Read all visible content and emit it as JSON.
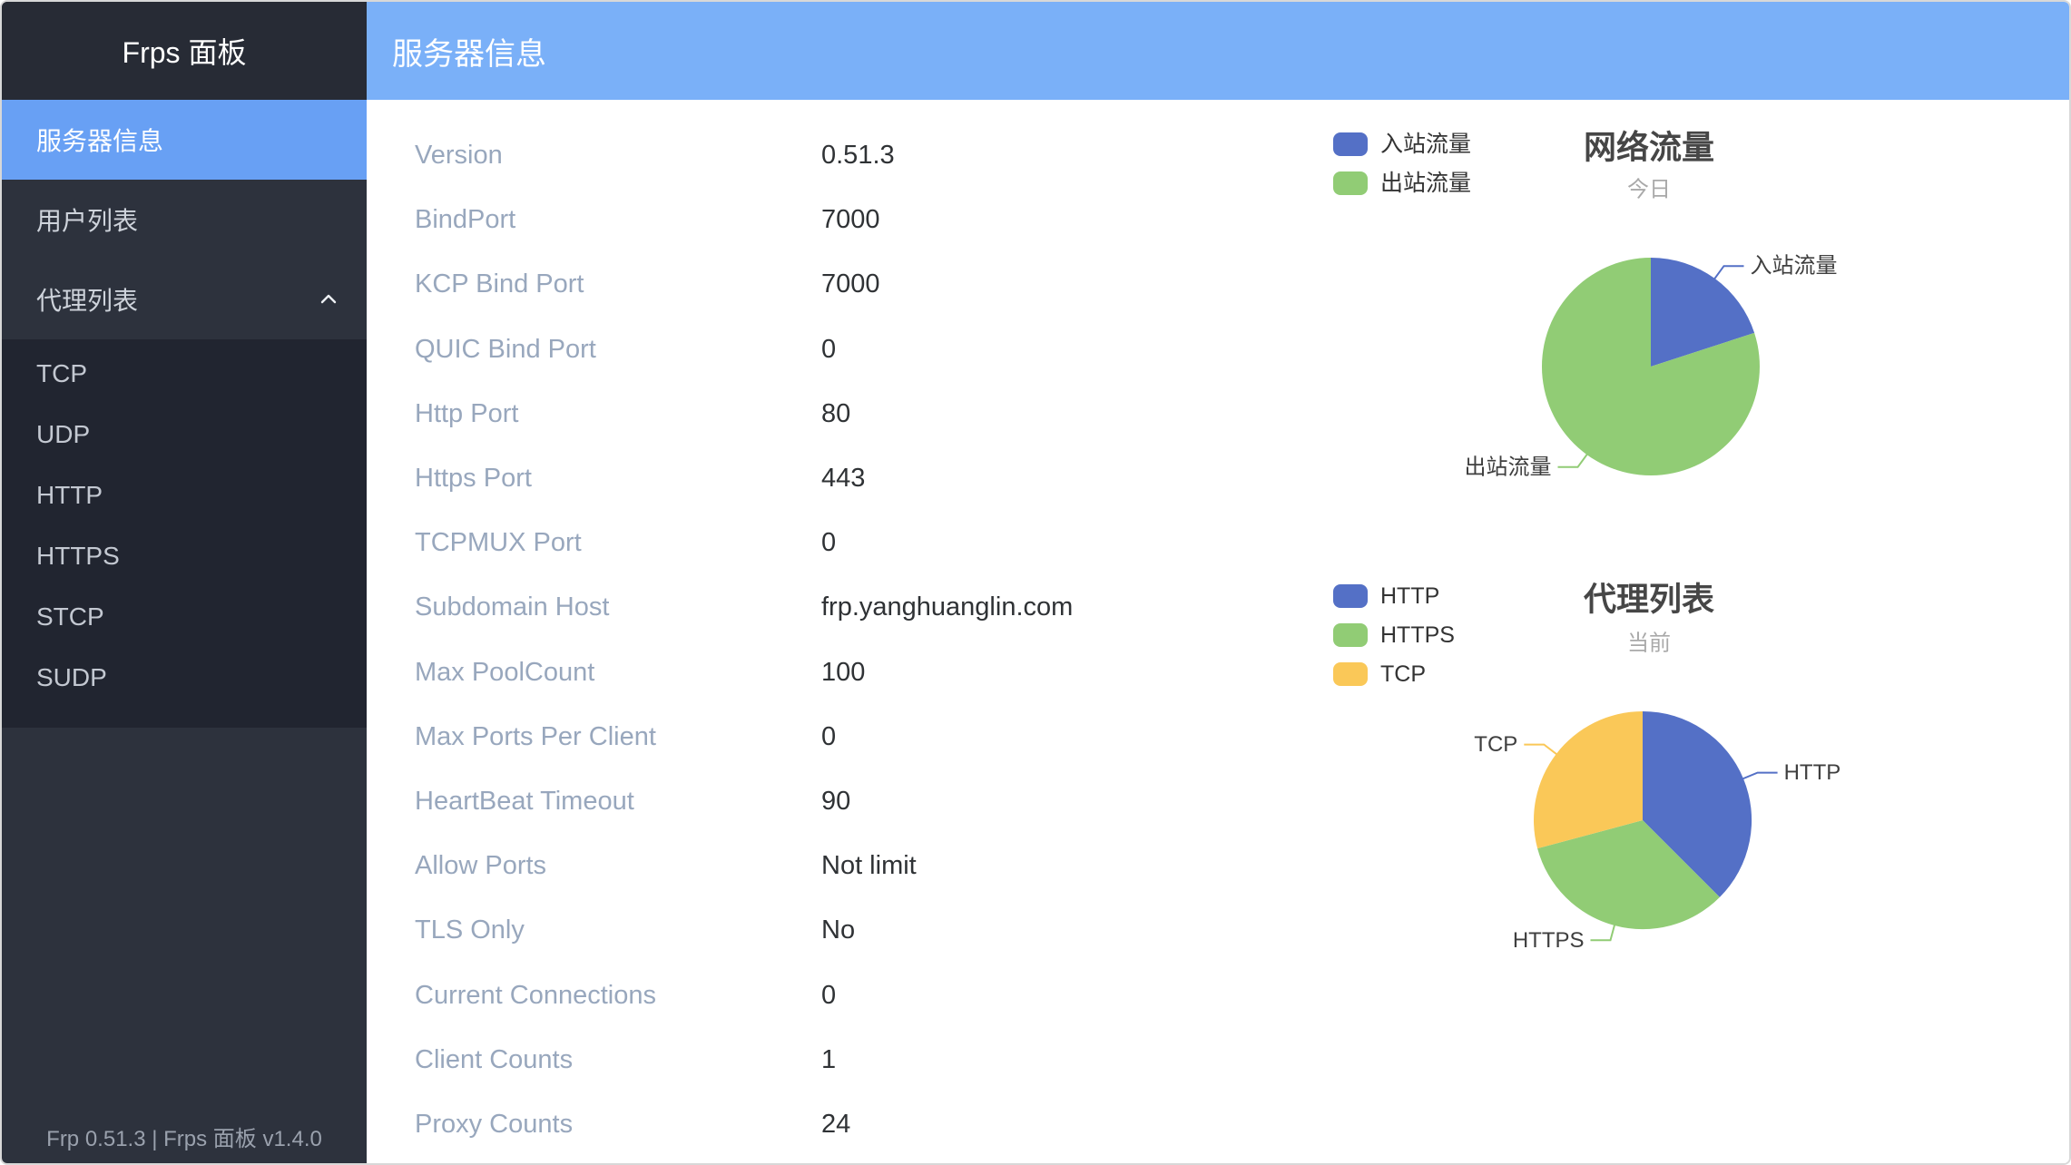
{
  "sidebar": {
    "title": "Frps 面板",
    "items": [
      {
        "id": "server-info",
        "label": "服务器信息",
        "active": true,
        "expandable": false
      },
      {
        "id": "user-list",
        "label": "用户列表",
        "active": false,
        "expandable": false
      },
      {
        "id": "proxy-list",
        "label": "代理列表",
        "active": false,
        "expandable": true,
        "expanded": true
      }
    ],
    "proxy_submenu": [
      {
        "id": "tcp",
        "label": "TCP"
      },
      {
        "id": "udp",
        "label": "UDP"
      },
      {
        "id": "http",
        "label": "HTTP"
      },
      {
        "id": "https",
        "label": "HTTPS"
      },
      {
        "id": "stcp",
        "label": "STCP"
      },
      {
        "id": "sudp",
        "label": "SUDP"
      }
    ],
    "footer": "Frp 0.51.3 | Frps 面板 v1.4.0"
  },
  "header": {
    "title": "服务器信息"
  },
  "server_info_rows": [
    {
      "label": "Version",
      "value": "0.51.3"
    },
    {
      "label": "BindPort",
      "value": "7000"
    },
    {
      "label": "KCP Bind Port",
      "value": "7000"
    },
    {
      "label": "QUIC Bind Port",
      "value": "0"
    },
    {
      "label": "Http Port",
      "value": "80"
    },
    {
      "label": "Https Port",
      "value": "443"
    },
    {
      "label": "TCPMUX Port",
      "value": "0"
    },
    {
      "label": "Subdomain Host",
      "value": "frp.yanghuanglin.com"
    },
    {
      "label": "Max PoolCount",
      "value": "100"
    },
    {
      "label": "Max Ports Per Client",
      "value": "0"
    },
    {
      "label": "HeartBeat Timeout",
      "value": "90"
    },
    {
      "label": "Allow Ports",
      "value": "Not limit"
    },
    {
      "label": "TLS Only",
      "value": "No"
    },
    {
      "label": "Current Connections",
      "value": "0"
    },
    {
      "label": "Client Counts",
      "value": "1"
    },
    {
      "label": "Proxy Counts",
      "value": "24"
    }
  ],
  "chart_data": [
    {
      "type": "pie",
      "title": "网络流量",
      "subtitle": "今日",
      "legend_position": "top-left",
      "values_unit": "estimated_percent_from_arc_angles",
      "series": [
        {
          "name": "入站流量",
          "value": 20,
          "color": "#5470c6"
        },
        {
          "name": "出站流量",
          "value": 80,
          "color": "#91cc75"
        }
      ]
    },
    {
      "type": "pie",
      "title": "代理列表",
      "subtitle": "当前",
      "legend_position": "top-left",
      "values_unit": "proxy_count",
      "series": [
        {
          "name": "HTTP",
          "value": 9,
          "color": "#5470c6"
        },
        {
          "name": "HTTPS",
          "value": 8,
          "color": "#91cc75"
        },
        {
          "name": "TCP",
          "value": 7,
          "color": "#fac858"
        }
      ]
    }
  ],
  "colors": {
    "header_bg": "#7ab0f8",
    "sidebar_bg": "#2d323d",
    "sidebar_title_bg": "#272b35",
    "submenu_bg": "#212530",
    "active_item_bg": "#68a0f4",
    "info_label_text": "#98a7bd",
    "info_value_text": "#2f3235",
    "chart_title_text": "#464646",
    "chart_subtitle_text": "#a9a9a9",
    "pie_blue": "#5470c6",
    "pie_green": "#91cc75",
    "pie_yellow": "#fac858"
  }
}
